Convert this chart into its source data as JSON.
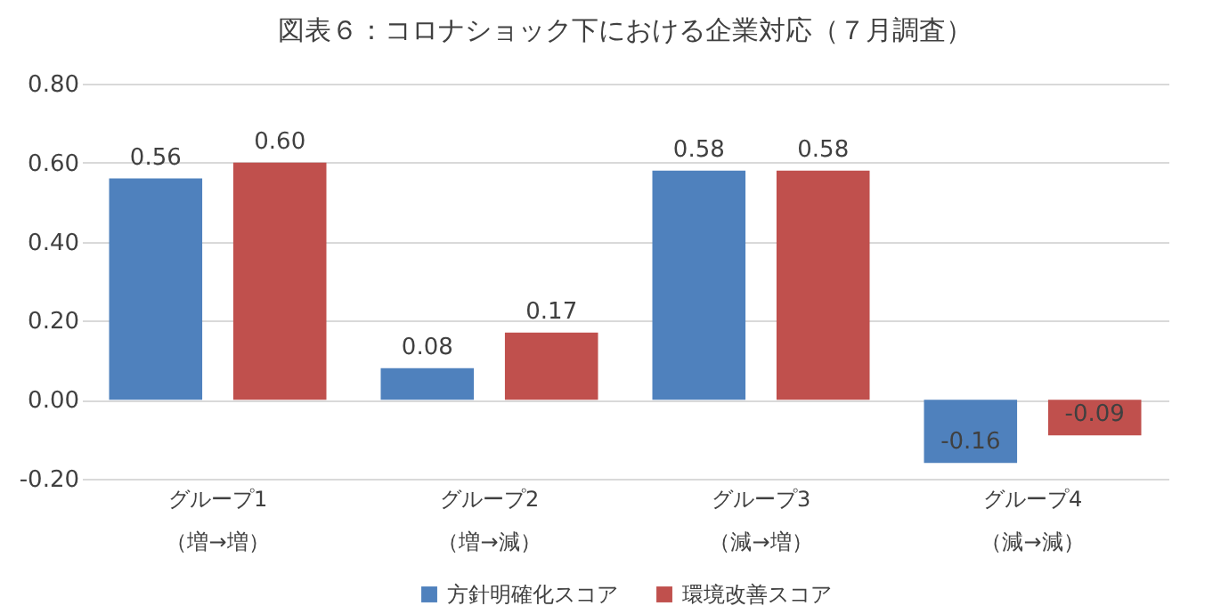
{
  "chart_data": {
    "type": "bar",
    "title": "図表６：コロナショック下における企業対応（７月調査）",
    "categories": [
      "グループ1\n（増→増）",
      "グループ2\n（増→減）",
      "グループ3\n（減→増）",
      "グループ4\n（減→減）"
    ],
    "series": [
      {
        "name": "方針明確化スコア",
        "color": "#4f81bd",
        "values": [
          0.56,
          0.08,
          0.58,
          -0.16
        ],
        "value_labels": [
          "0.56",
          "0.08",
          "0.58",
          "-0.16"
        ]
      },
      {
        "name": "環境改善スコア",
        "color": "#c0504d",
        "values": [
          0.6,
          0.17,
          0.58,
          -0.09
        ],
        "value_labels": [
          "0.60",
          "0.17",
          "0.58",
          "-0.09"
        ]
      }
    ],
    "ylim": [
      -0.2,
      0.8
    ],
    "yticks": [
      {
        "value": -0.2,
        "label": "-0.20"
      },
      {
        "value": 0,
        "label": "0.00"
      },
      {
        "value": 0.2,
        "label": "0.20"
      },
      {
        "value": 0.4,
        "label": "0.40"
      },
      {
        "value": 0.6,
        "label": "0.60"
      },
      {
        "value": 0.8,
        "label": "0.80"
      }
    ],
    "grid": "y",
    "legend": "bottom"
  }
}
